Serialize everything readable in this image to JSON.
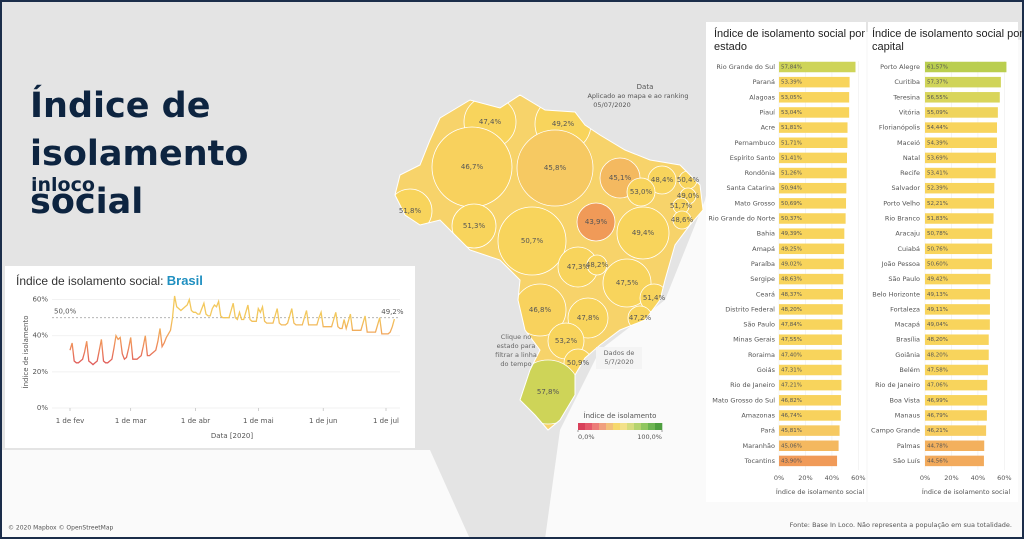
{
  "header": {
    "title": "Índice de isolamento social",
    "subtitle": "inloco"
  },
  "chart_data": [
    {
      "type": "line",
      "title": "Índice de isolamento social: ",
      "title_highlight": "Brasil",
      "x_label": "Data [2020]",
      "y_label": "Índice de isolamento",
      "categories": [
        "1 de fev",
        null,
        null,
        null,
        null,
        null,
        null,
        null,
        null,
        null,
        null,
        null,
        null,
        null,
        null,
        null,
        null,
        null,
        null,
        null,
        null,
        null,
        null,
        null,
        null,
        null,
        null,
        null,
        null,
        "1 de mar",
        null,
        null,
        null,
        null,
        null,
        null,
        null,
        null,
        null,
        null,
        null,
        null,
        null,
        null,
        null,
        null,
        null,
        null,
        null,
        null,
        null,
        null,
        null,
        null,
        null,
        null,
        null,
        null,
        null,
        null,
        "1 de abr",
        null,
        null,
        null,
        null,
        null,
        null,
        null,
        null,
        null,
        null,
        null,
        null,
        null,
        null,
        null,
        null,
        null,
        null,
        null,
        null,
        null,
        null,
        null,
        null,
        null,
        null,
        null,
        null,
        null,
        "1 de mai",
        null,
        null,
        null,
        null,
        null,
        null,
        null,
        null,
        null,
        null,
        null,
        null,
        null,
        null,
        null,
        null,
        null,
        null,
        null,
        null,
        null,
        null,
        null,
        null,
        null,
        null,
        null,
        null,
        null,
        null,
        "1 de jun",
        null,
        null,
        null,
        null,
        null,
        null,
        null,
        null,
        null,
        null,
        null,
        null,
        null,
        null,
        null,
        null,
        null,
        null,
        null,
        null,
        null,
        null,
        null,
        null,
        null,
        null,
        null,
        null,
        null,
        "1 de jul",
        null,
        null,
        null,
        null
      ],
      "values": [
        32,
        36,
        26,
        25,
        25,
        26,
        27,
        31,
        37,
        26,
        25,
        24,
        25,
        26,
        32,
        38,
        26,
        25,
        25,
        26,
        27,
        33,
        40,
        38,
        39,
        30,
        27,
        28,
        33,
        39,
        27,
        27,
        27,
        28,
        29,
        34,
        40,
        29,
        29,
        30,
        31,
        32,
        37,
        44,
        34,
        36,
        39,
        41,
        43,
        50,
        62,
        56,
        55,
        54,
        55,
        56,
        57,
        60,
        54,
        53,
        53,
        52,
        52,
        55,
        58,
        52,
        51,
        51,
        55,
        57,
        56,
        59,
        51,
        50,
        50,
        50,
        50,
        54,
        58,
        50,
        49,
        53,
        49,
        49,
        53,
        57,
        49,
        48,
        48,
        48,
        55,
        53,
        56,
        48,
        47,
        47,
        47,
        47,
        51,
        55,
        47,
        46,
        46,
        46,
        47,
        51,
        55,
        47,
        46,
        46,
        46,
        46,
        50,
        54,
        46,
        46,
        46,
        46,
        46,
        50,
        53,
        45,
        45,
        45,
        45,
        45,
        49,
        53,
        45,
        44,
        44,
        49,
        44,
        48,
        52,
        43,
        43,
        43,
        43,
        43,
        47,
        51,
        42,
        42,
        42,
        42,
        42,
        46,
        50,
        41,
        41,
        41,
        41,
        42,
        45,
        49.2
      ],
      "ylim": [
        0,
        62
      ],
      "yticks": [
        {
          "value": 0,
          "label": "0%"
        },
        {
          "value": 20,
          "label": "20%"
        },
        {
          "value": 40,
          "label": "40%"
        },
        {
          "value": 60,
          "label": "60%"
        }
      ],
      "reference": {
        "value": 50,
        "label": "50,0%"
      },
      "annotations": [
        {
          "value": 49.2,
          "label": "49,2%"
        }
      ]
    },
    {
      "type": "map",
      "regions": [
        {
          "value": 47.4,
          "label": "47,4%"
        },
        {
          "value": 49.2,
          "label": "49,2%"
        },
        {
          "value": 46.7,
          "label": "46,7%"
        },
        {
          "value": 45.8,
          "label": "45,8%"
        },
        {
          "value": 45.1,
          "label": "45,1%"
        },
        {
          "value": 48.4,
          "label": "48,4%"
        },
        {
          "value": 50.4,
          "label": "50,4%"
        },
        {
          "value": 53.0,
          "label": "53,0%"
        },
        {
          "value": 49.0,
          "label": "49,0%"
        },
        {
          "value": 51.7,
          "label": "51,7%"
        },
        {
          "value": 51.8,
          "label": "51,8%"
        },
        {
          "value": 48.6,
          "label": "48,6%"
        },
        {
          "value": 43.9,
          "label": "43,9%"
        },
        {
          "value": 51.3,
          "label": "51,3%"
        },
        {
          "value": 49.4,
          "label": "49,4%"
        },
        {
          "value": 50.7,
          "label": "50,7%"
        },
        {
          "value": 47.3,
          "label": "47,3%"
        },
        {
          "value": 48.2,
          "label": "48,2%"
        },
        {
          "value": 47.5,
          "label": "47,5%"
        },
        {
          "value": 51.4,
          "label": "51,4%"
        },
        {
          "value": 46.8,
          "label": "46,8%"
        },
        {
          "value": 47.8,
          "label": "47,8%"
        },
        {
          "value": 47.2,
          "label": "47,2%"
        },
        {
          "value": 53.2,
          "label": "53,2%"
        },
        {
          "value": 50.9,
          "label": "50,9%"
        },
        {
          "value": 57.8,
          "label": "57,8%"
        }
      ],
      "legend_title": "Índice de isolamento",
      "colorbar_ticks": [
        {
          "value": 0,
          "label": "0,0%"
        },
        {
          "value": 100,
          "label": "100,0%"
        }
      ],
      "date_title": "Data",
      "date_note": "Aplicado ao mapa e ao ranking",
      "date": "05/07/2020",
      "tooltip": "Clique no estado para filtrar a linha do tempo",
      "data_note": "Dados de 5/7/2020"
    },
    {
      "type": "hbar",
      "title": "Índice de isolamento social por estado",
      "categories": [
        "Rio Grande do Sul",
        "Paraná",
        "Alagoas",
        "Piauí",
        "Acre",
        "Pernambuco",
        "Espírito Santo",
        "Rondônia",
        "Santa Catarina",
        "Mato Grosso",
        "Rio Grande do Norte",
        "Bahia",
        "Amapá",
        "Paraíba",
        "Sergipe",
        "Ceará",
        "Distrito Federal",
        "São Paulo",
        "Minas Gerais",
        "Roraima",
        "Goiás",
        "Rio de Janeiro",
        "Mato Grosso do Sul",
        "Amazonas",
        "Pará",
        "Maranhão",
        "Tocantins"
      ],
      "values": [
        57.84,
        53.39,
        53.05,
        53.04,
        51.81,
        51.71,
        51.41,
        51.26,
        50.94,
        50.69,
        50.37,
        49.39,
        49.25,
        49.02,
        48.63,
        48.37,
        48.2,
        47.84,
        47.55,
        47.4,
        47.31,
        47.21,
        46.82,
        46.74,
        45.81,
        45.06,
        43.9
      ],
      "value_labels": [
        "57,84%",
        "53,39%",
        "53,05%",
        "53,04%",
        "51,81%",
        "51,71%",
        "51,41%",
        "51,26%",
        "50,94%",
        "50,69%",
        "50,37%",
        "49,39%",
        "49,25%",
        "49,02%",
        "48,63%",
        "48,37%",
        "48,20%",
        "47,84%",
        "47,55%",
        "47,40%",
        "47,31%",
        "47,21%",
        "46,82%",
        "46,74%",
        "45,81%",
        "45,06%",
        "43,90%"
      ],
      "xlim": [
        0,
        62
      ],
      "xticks": [
        {
          "value": 0,
          "label": "0%"
        },
        {
          "value": 20,
          "label": "20%"
        },
        {
          "value": 40,
          "label": "40%"
        },
        {
          "value": 60,
          "label": "60%"
        }
      ],
      "x_label": "Índice de isolamento social"
    },
    {
      "type": "hbar",
      "title": "Índice de isolamento social por capital",
      "categories": [
        "Porto Alegre",
        "Curitiba",
        "Teresina",
        "Vitória",
        "Florianópolis",
        "Maceió",
        "Natal",
        "Recife",
        "Salvador",
        "Porto Velho",
        "Rio Branco",
        "Aracaju",
        "Cuiabá",
        "João Pessoa",
        "São Paulo",
        "Belo Horizonte",
        "Fortaleza",
        "Macapá",
        "Brasília",
        "Goiânia",
        "Belém",
        "Rio de Janeiro",
        "Boa Vista",
        "Manaus",
        "Campo Grande",
        "Palmas",
        "São Luís"
      ],
      "values": [
        61.57,
        57.37,
        56.55,
        55.09,
        54.44,
        54.39,
        53.69,
        53.41,
        52.39,
        52.21,
        51.83,
        50.78,
        50.76,
        50.6,
        49.42,
        49.13,
        49.11,
        49.04,
        48.2,
        48.2,
        47.58,
        47.06,
        46.99,
        46.79,
        46.21,
        44.78,
        44.56
      ],
      "value_labels": [
        "61,57%",
        "57,37%",
        "56,55%",
        "55,09%",
        "54,44%",
        "54,39%",
        "53,69%",
        "53,41%",
        "52,39%",
        "52,21%",
        "51,83%",
        "50,78%",
        "50,76%",
        "50,60%",
        "49,42%",
        "49,13%",
        "49,11%",
        "49,04%",
        "48,20%",
        "48,20%",
        "47,58%",
        "47,06%",
        "46,99%",
        "46,79%",
        "46,21%",
        "44,78%",
        "44,56%"
      ],
      "xlim": [
        0,
        62
      ],
      "xticks": [
        {
          "value": 0,
          "label": "0%"
        },
        {
          "value": 20,
          "label": "20%"
        },
        {
          "value": 40,
          "label": "40%"
        },
        {
          "value": 60,
          "label": "60%"
        }
      ],
      "x_label": "Índice de isolamento social"
    }
  ],
  "footer": {
    "attribution": "© 2020 Mapbox © OpenStreetMap",
    "source": "Fonte: Base In Loco. Não representa a população em sua totalidade."
  }
}
